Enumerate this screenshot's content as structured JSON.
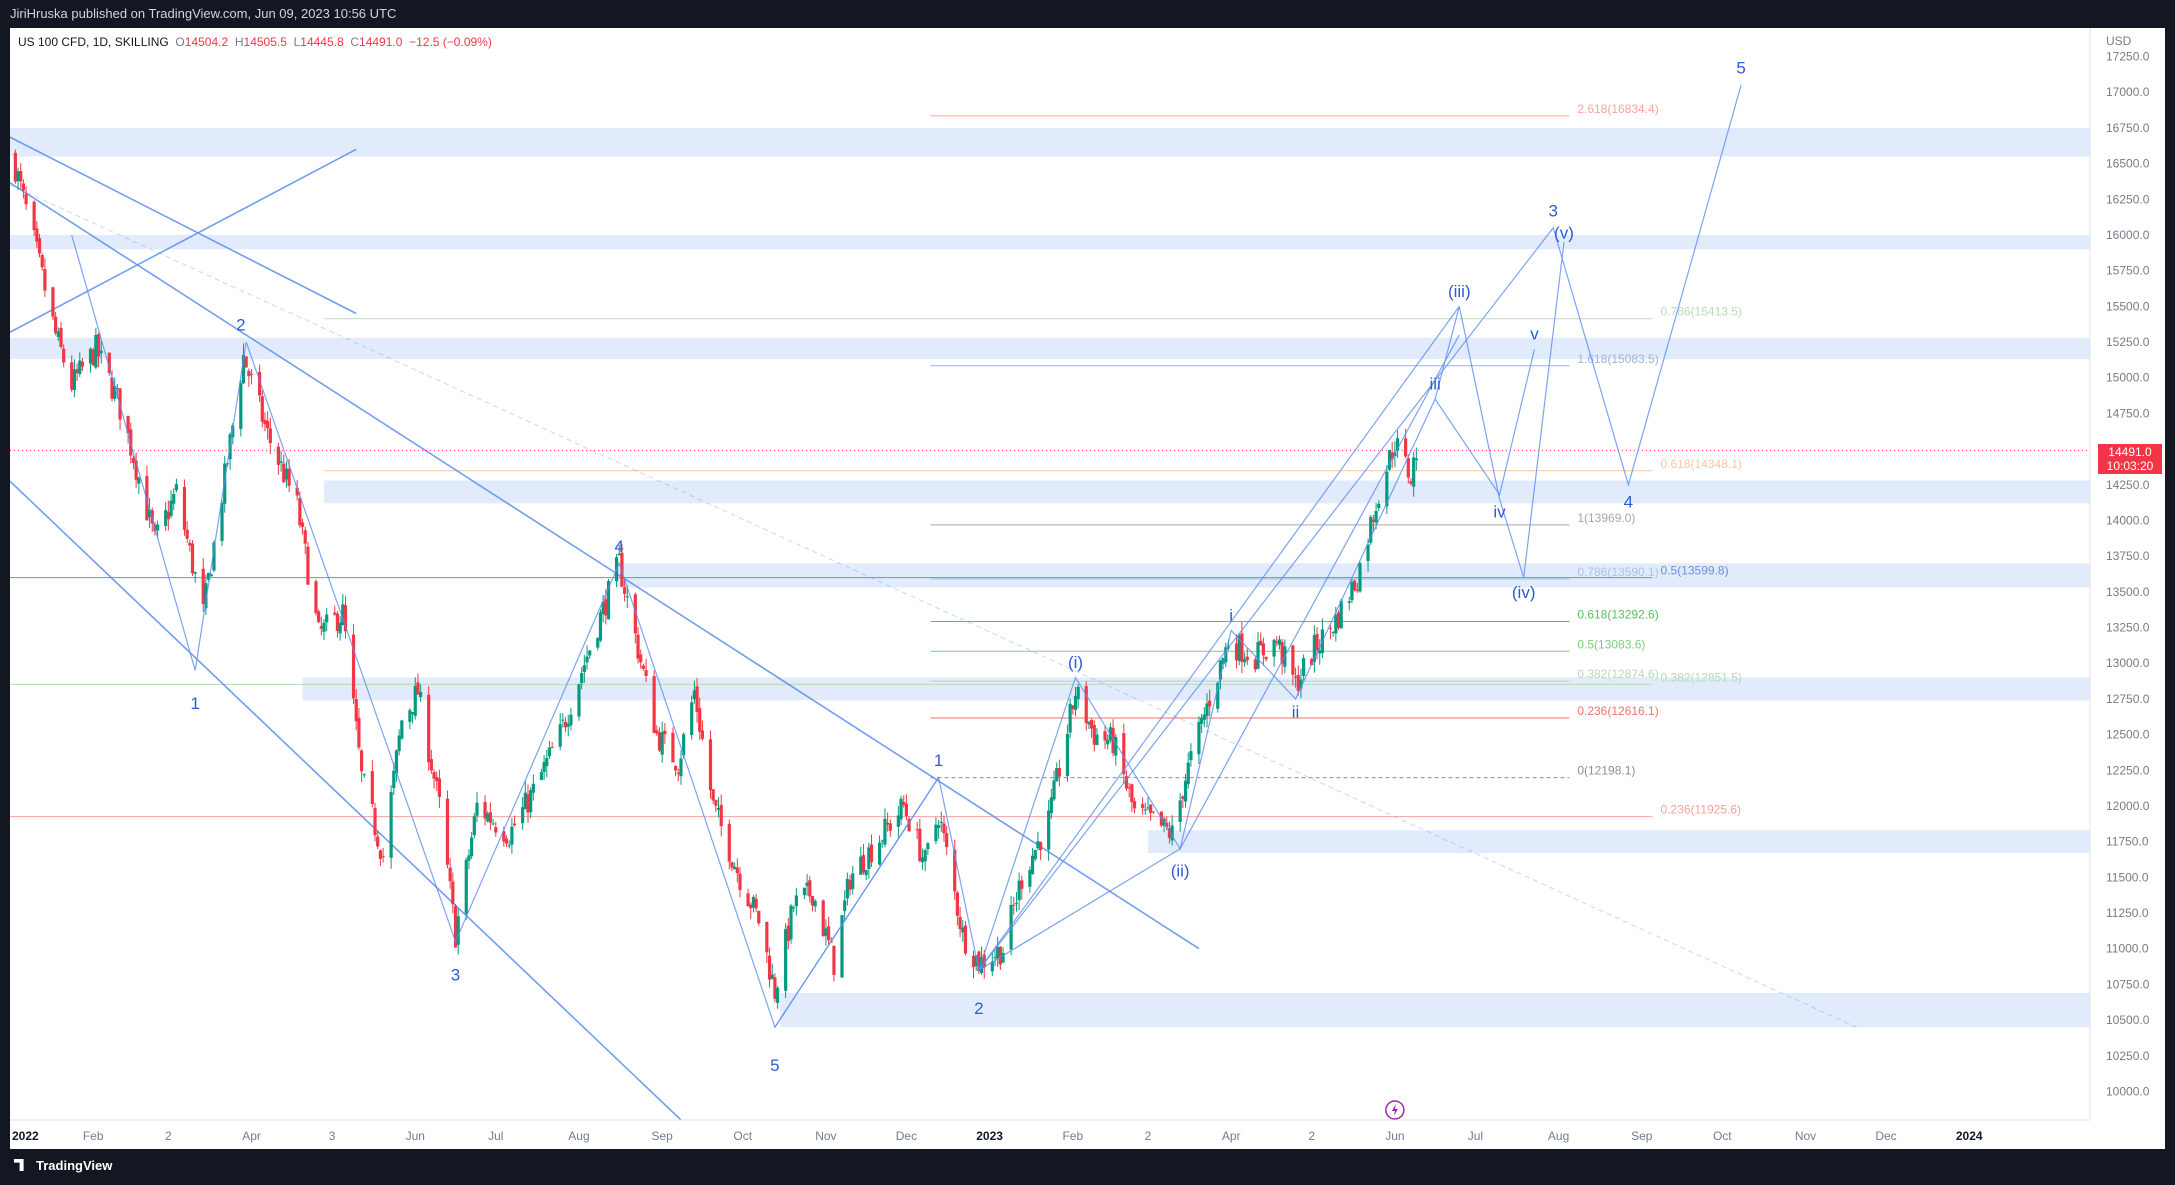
{
  "header": {
    "publisher_text": "JiriHruska published on TradingView.com, Jun 09, 2023 10:56 UTC"
  },
  "legend": {
    "symbol": "US 100 CFD, 1D, SKILLING",
    "open_label": "O",
    "open": "14504.2",
    "high_label": "H",
    "high": "14505.5",
    "low_label": "L",
    "low": "14445.8",
    "close_label": "C",
    "close": "14491.0",
    "change": "−12.5 (−0.09%)"
  },
  "price_tag": {
    "price": "14491.0",
    "countdown": "10:03:20"
  },
  "footer": {
    "brand": "TradingView"
  },
  "colors": {
    "background": "#ffffff",
    "bar_dark": "#131722",
    "up": "#089981",
    "down": "#f23645",
    "drawing": "#5b8def",
    "zone": "#dce8fb",
    "axis_text": "#787b86"
  },
  "chart_data": {
    "type": "candlestick",
    "title": "",
    "currency": "USD",
    "ylim": [
      9800,
      17450
    ],
    "y_ticks": [
      10000,
      10250,
      10500,
      10750,
      11000,
      11250,
      11500,
      11750,
      12000,
      12250,
      12500,
      12750,
      13000,
      13250,
      13500,
      13750,
      14000,
      14250,
      14500,
      14750,
      15000,
      15250,
      15500,
      15750,
      16000,
      16250,
      16500,
      16750,
      17000,
      17250
    ],
    "y_tick_labels": [
      "10000.0",
      "10250.0",
      "10500.0",
      "10750.0",
      "11000.0",
      "11250.0",
      "11500.0",
      "11750.0",
      "12000.0",
      "12250.0",
      "12500.0",
      "12750.0",
      "13000.0",
      "13250.0",
      "13500.0",
      "13750.0",
      "14000.0",
      "14250.0",
      "14500.0",
      "14750.0",
      "15000.0",
      "15250.0",
      "15500.0",
      "15750.0",
      "16000.0",
      "16250.0",
      "16500.0",
      "16750.0",
      "17000.0",
      "17250.0"
    ],
    "x_domain": [
      "2022-01-01",
      "2024-02-15"
    ],
    "x_ticks": [
      {
        "date": "2022-01-01",
        "label": "2022"
      },
      {
        "date": "2022-02-01",
        "label": "Feb"
      },
      {
        "date": "2022-03-01",
        "label": "2"
      },
      {
        "date": "2022-04-01",
        "label": "Apr"
      },
      {
        "date": "2022-05-01",
        "label": "3"
      },
      {
        "date": "2022-06-01",
        "label": "Jun"
      },
      {
        "date": "2022-07-01",
        "label": "Jul"
      },
      {
        "date": "2022-08-01",
        "label": "Aug"
      },
      {
        "date": "2022-09-01",
        "label": "Sep"
      },
      {
        "date": "2022-10-01",
        "label": "Oct"
      },
      {
        "date": "2022-11-01",
        "label": "Nov"
      },
      {
        "date": "2022-12-01",
        "label": "Dec"
      },
      {
        "date": "2023-01-01",
        "label": "2023"
      },
      {
        "date": "2023-02-01",
        "label": "Feb"
      },
      {
        "date": "2023-03-01",
        "label": "2"
      },
      {
        "date": "2023-04-01",
        "label": "Apr"
      },
      {
        "date": "2023-05-01",
        "label": "2"
      },
      {
        "date": "2023-06-01",
        "label": "Jun"
      },
      {
        "date": "2023-07-01",
        "label": "Jul"
      },
      {
        "date": "2023-08-01",
        "label": "Aug"
      },
      {
        "date": "2023-09-01",
        "label": "Sep"
      },
      {
        "date": "2023-10-01",
        "label": "Oct"
      },
      {
        "date": "2023-11-01",
        "label": "Nov"
      },
      {
        "date": "2023-12-01",
        "label": "Dec"
      },
      {
        "date": "2024-01-01",
        "label": "2024"
      }
    ],
    "price_path": [
      [
        "2022-01-02",
        16550
      ],
      [
        "2022-01-10",
        15950
      ],
      [
        "2022-01-18",
        15300
      ],
      [
        "2022-01-24",
        14950
      ],
      [
        "2022-02-02",
        15200
      ],
      [
        "2022-02-10",
        14850
      ],
      [
        "2022-02-16",
        14450
      ],
      [
        "2022-02-24",
        13850
      ],
      [
        "2022-03-04",
        14200
      ],
      [
        "2022-03-14",
        13350
      ],
      [
        "2022-03-22",
        14300
      ],
      [
        "2022-03-29",
        15150
      ],
      [
        "2022-04-07",
        14600
      ],
      [
        "2022-04-18",
        14100
      ],
      [
        "2022-04-26",
        13200
      ],
      [
        "2022-05-05",
        13350
      ],
      [
        "2022-05-12",
        12200
      ],
      [
        "2022-05-20",
        11650
      ],
      [
        "2022-05-27",
        12600
      ],
      [
        "2022-06-02",
        12800
      ],
      [
        "2022-06-10",
        12000
      ],
      [
        "2022-06-16",
        11100
      ],
      [
        "2022-06-24",
        12000
      ],
      [
        "2022-07-06",
        11800
      ],
      [
        "2022-07-15",
        12100
      ],
      [
        "2022-07-25",
        12500
      ],
      [
        "2022-08-03",
        13000
      ],
      [
        "2022-08-16",
        13700
      ],
      [
        "2022-08-23",
        13100
      ],
      [
        "2022-08-30",
        12500
      ],
      [
        "2022-09-07",
        12300
      ],
      [
        "2022-09-13",
        12800
      ],
      [
        "2022-09-20",
        12000
      ],
      [
        "2022-09-30",
        11500
      ],
      [
        "2022-10-07",
        11200
      ],
      [
        "2022-10-13",
        10700
      ],
      [
        "2022-10-20",
        11300
      ],
      [
        "2022-10-27",
        11400
      ],
      [
        "2022-11-04",
        10900
      ],
      [
        "2022-11-10",
        11500
      ],
      [
        "2022-11-18",
        11700
      ],
      [
        "2022-11-30",
        12000
      ],
      [
        "2022-12-08",
        11600
      ],
      [
        "2022-12-13",
        11950
      ],
      [
        "2022-12-22",
        11100
      ],
      [
        "2022-12-28",
        10900
      ],
      [
        "2023-01-06",
        11000
      ],
      [
        "2023-01-13",
        11500
      ],
      [
        "2023-01-23",
        11900
      ],
      [
        "2023-02-02",
        12800
      ],
      [
        "2023-02-09",
        12500
      ],
      [
        "2023-02-16",
        12450
      ],
      [
        "2023-02-24",
        11950
      ],
      [
        "2023-03-02",
        11900
      ],
      [
        "2023-03-10",
        11800
      ],
      [
        "2023-03-15",
        12200
      ],
      [
        "2023-03-23",
        12700
      ],
      [
        "2023-03-31",
        13150
      ],
      [
        "2023-04-10",
        13050
      ],
      [
        "2023-04-18",
        13150
      ],
      [
        "2023-04-25",
        12850
      ],
      [
        "2023-05-02",
        13100
      ],
      [
        "2023-05-10",
        13300
      ],
      [
        "2023-05-18",
        13600
      ],
      [
        "2023-05-26",
        14200
      ],
      [
        "2023-06-01",
        14550
      ],
      [
        "2023-06-07",
        14300
      ],
      [
        "2023-06-09",
        14491
      ]
    ],
    "zones": [
      {
        "from": "2021-12-15",
        "to": "2024-02-15",
        "low": 16550,
        "high": 16750
      },
      {
        "from": "2021-12-15",
        "to": "2024-02-15",
        "low": 15900,
        "high": 16000
      },
      {
        "from": "2021-12-15",
        "to": "2024-02-15",
        "low": 15130,
        "high": 15280
      },
      {
        "from": "2022-04-28",
        "to": "2024-02-15",
        "low": 14120,
        "high": 14280
      },
      {
        "from": "2022-08-15",
        "to": "2024-02-15",
        "low": 13530,
        "high": 13700
      },
      {
        "from": "2022-04-20",
        "to": "2024-02-15",
        "low": 12740,
        "high": 12900
      },
      {
        "from": "2023-03-01",
        "to": "2024-02-15",
        "low": 11670,
        "high": 11830
      },
      {
        "from": "2022-10-15",
        "to": "2024-02-15",
        "low": 10450,
        "high": 10690
      }
    ],
    "trendlines": [
      {
        "points": [
          [
            "2021-12-20",
            16800
          ],
          [
            "2022-05-10",
            15450
          ]
        ]
      },
      {
        "points": [
          [
            "2021-12-20",
            15200
          ],
          [
            "2022-05-10",
            16600
          ]
        ]
      },
      {
        "points": [
          [
            "2021-12-25",
            16450
          ],
          [
            "2023-03-20",
            11000
          ]
        ]
      },
      {
        "points": [
          [
            "2021-12-25",
            14400
          ],
          [
            "2022-09-08",
            9800
          ]
        ]
      },
      {
        "points": [
          [
            "2022-01-01",
            16350
          ],
          [
            "2023-11-20",
            10450
          ]
        ],
        "dashed": true
      }
    ],
    "wave_paths": [
      [
        [
          "2022-01-24",
          16000
        ],
        [
          "2022-03-11",
          12950
        ],
        [
          "2022-03-30",
          15250
        ],
        [
          "2022-06-16",
          11050
        ],
        [
          "2022-08-16",
          13700
        ],
        [
          "2022-10-13",
          10450
        ],
        [
          "2022-12-13",
          12200
        ],
        [
          "2022-12-28",
          10850
        ],
        [
          "2023-03-13",
          11700
        ]
      ],
      [
        [
          "2022-10-13",
          10450
        ],
        [
          "2022-12-13",
          12200
        ]
      ],
      [
        [
          "2022-12-28",
          10850
        ],
        [
          "2023-02-02",
          12900
        ],
        [
          "2023-03-13",
          11700
        ],
        [
          "2023-04-01",
          13230
        ],
        [
          "2023-04-25",
          12750
        ],
        [
          "2023-06-16",
          14850
        ],
        [
          "2023-07-10",
          14180
        ],
        [
          "2023-07-23",
          15200
        ]
      ],
      [
        [
          "2023-06-16",
          14850
        ],
        [
          "2023-06-25",
          15500
        ],
        [
          "2023-07-10",
          14150
        ],
        [
          "2023-07-19",
          13600
        ],
        [
          "2023-08-03",
          15950
        ]
      ],
      [
        [
          "2022-12-28",
          10850
        ],
        [
          "2023-06-25",
          15500
        ]
      ],
      [
        [
          "2023-03-13",
          11700
        ],
        [
          "2023-06-25",
          15300
        ]
      ],
      [
        [
          "2022-12-28",
          10850
        ],
        [
          "2023-07-30",
          16050
        ],
        [
          "2023-08-27",
          14250
        ],
        [
          "2023-10-08",
          17050
        ]
      ]
    ],
    "wave_labels": [
      {
        "text": "1",
        "date": "2022-03-11",
        "price": 12810,
        "dy": 14
      },
      {
        "text": "2",
        "date": "2022-03-28",
        "price": 15250,
        "dy": -16
      },
      {
        "text": "3",
        "date": "2022-06-16",
        "price": 10920,
        "dy": 16
      },
      {
        "text": "4",
        "date": "2022-08-16",
        "price": 13700,
        "dy": -16
      },
      {
        "text": "5",
        "date": "2022-10-13",
        "price": 10300,
        "dy": 18
      },
      {
        "text": "1",
        "date": "2022-12-13",
        "price": 12200,
        "dy": -16
      },
      {
        "text": "2",
        "date": "2022-12-28",
        "price": 10700,
        "dy": 18
      },
      {
        "text": "(i)",
        "date": "2023-02-02",
        "price": 12900,
        "dy": -14
      },
      {
        "text": "(ii)",
        "date": "2023-03-13",
        "price": 11650,
        "dy": 16
      },
      {
        "text": "i",
        "date": "2023-04-01",
        "price": 13230,
        "dy": -14
      },
      {
        "text": "ii",
        "date": "2023-04-25",
        "price": 12750,
        "dy": 14
      },
      {
        "text": "iii",
        "date": "2023-06-16",
        "price": 14850,
        "dy": -14
      },
      {
        "text": "iv",
        "date": "2023-07-10",
        "price": 14150,
        "dy": 14
      },
      {
        "text": "v",
        "date": "2023-07-23",
        "price": 15200,
        "dy": -14
      },
      {
        "text": "(iii)",
        "date": "2023-06-25",
        "price": 15500,
        "dy": -14
      },
      {
        "text": "(iv)",
        "date": "2023-07-19",
        "price": 13600,
        "dy": 16
      },
      {
        "text": "(v)",
        "date": "2023-08-03",
        "price": 15950,
        "dy": -8
      },
      {
        "text": "3",
        "date": "2023-07-30",
        "price": 16050,
        "dy": -16
      },
      {
        "text": "4",
        "date": "2023-08-27",
        "price": 14250,
        "dy": 18
      },
      {
        "text": "5",
        "date": "2023-10-08",
        "price": 17050,
        "dy": -16
      }
    ],
    "fib_levels": [
      {
        "price": 16834.4,
        "from": "2022-12-10",
        "to": "2023-08-05",
        "label": "2.618(16834.4)",
        "color": "#f4a79c"
      },
      {
        "price": 15413.5,
        "from": "2022-04-28",
        "to": "2023-09-05",
        "label": "0.786(15413.5)",
        "color": "#b7deb3"
      },
      {
        "price": 15083.5,
        "from": "2022-12-10",
        "to": "2023-08-05",
        "label": "1.618(15083.5)",
        "color": "#9bb6dc"
      },
      {
        "price": 14348.1,
        "from": "2022-04-28",
        "to": "2023-09-05",
        "label": "0.618(14348.1)",
        "color": "#f6c7a5"
      },
      {
        "price": 13969.0,
        "from": "2022-12-10",
        "to": "2023-08-05",
        "label": "1(13969.0)",
        "color": "#a7a7a7"
      },
      {
        "price": 13590.1,
        "from": "2022-12-10",
        "to": "2023-08-05",
        "label": "0.786(13590.1)",
        "color": "#a7c4ee"
      },
      {
        "price": 13599.8,
        "from": "2021-12-20",
        "to": "2023-09-05",
        "label": "0.5(13599.8)",
        "color": "#6a8fd8"
      },
      {
        "price": 13292.6,
        "from": "2022-12-10",
        "to": "2023-08-05",
        "label": "0.618(13292.6)",
        "color": "#5cbf60"
      },
      {
        "price": 13083.6,
        "from": "2022-12-10",
        "to": "2023-08-05",
        "label": "0.5(13083.6)",
        "color": "#7dcc7d"
      },
      {
        "price": 12874.6,
        "from": "2022-12-10",
        "to": "2023-08-05",
        "label": "0.382(12874.6)",
        "color": "#b6dcb1"
      },
      {
        "price": 12851.5,
        "from": "2021-12-20",
        "to": "2023-09-05",
        "label": "0.382(12851.5)",
        "color": "#b6dcb1"
      },
      {
        "price": 12616.1,
        "from": "2022-12-10",
        "to": "2023-08-05",
        "label": "0.236(12616.1)",
        "color": "#f4726a"
      },
      {
        "price": 12198.1,
        "from": "2022-12-10",
        "to": "2023-08-05",
        "label": "0(12198.1)",
        "color": "#8f8f8f",
        "dashed": true
      },
      {
        "price": 11925.6,
        "from": "2021-12-20",
        "to": "2023-09-05",
        "label": "0.236(11925.6)",
        "color": "#f6a29a"
      }
    ],
    "last_price": 14491.0
  }
}
